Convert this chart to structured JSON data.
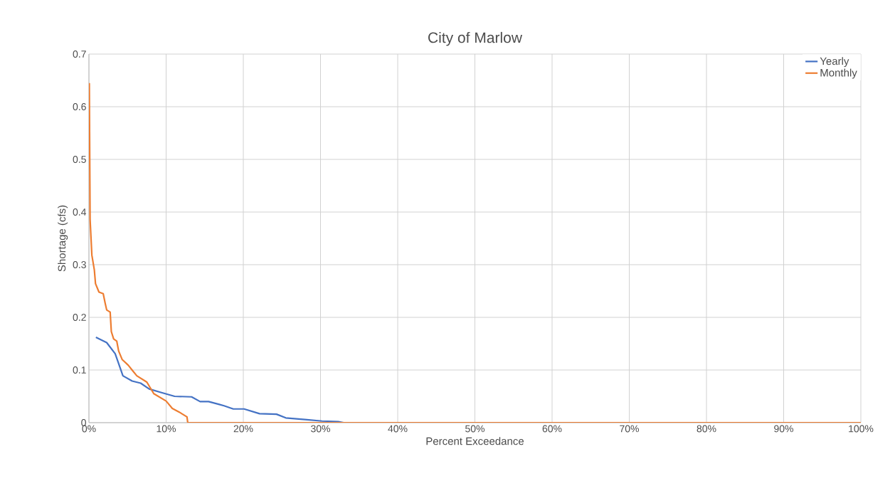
{
  "chart_data": {
    "type": "line",
    "title": "City of Marlow",
    "xlabel": "Percent Exceedance",
    "ylabel": "Shortage (cfs)",
    "xlim": [
      0,
      100
    ],
    "ylim": [
      0,
      0.7
    ],
    "xticks": [
      {
        "value": 0,
        "label": "0%"
      },
      {
        "value": 10,
        "label": "10%"
      },
      {
        "value": 20,
        "label": "20%"
      },
      {
        "value": 30,
        "label": "30%"
      },
      {
        "value": 40,
        "label": "40%"
      },
      {
        "value": 50,
        "label": "50%"
      },
      {
        "value": 60,
        "label": "60%"
      },
      {
        "value": 70,
        "label": "70%"
      },
      {
        "value": 80,
        "label": "80%"
      },
      {
        "value": 90,
        "label": "90%"
      },
      {
        "value": 100,
        "label": "100%"
      }
    ],
    "yticks": [
      0,
      0.1,
      0.2,
      0.3,
      0.4,
      0.5,
      0.6,
      0.7
    ],
    "grid": true,
    "legend": "top right",
    "marker": "none",
    "line_style": "solid",
    "series": [
      {
        "name": "Yearly",
        "color": "#4472c4",
        "x": [
          0.9,
          2.3,
          3.4,
          4.4,
          5.6,
          6.7,
          7.8,
          9.4,
          11.1,
          13.3,
          14.4,
          15.5,
          16.8,
          17.5,
          18.7,
          20.1,
          22.1,
          24.3,
          25.5,
          28,
          30.2,
          32.3,
          33
        ],
        "values": [
          0.162,
          0.152,
          0.131,
          0.089,
          0.079,
          0.075,
          0.064,
          0.057,
          0.05,
          0.049,
          0.04,
          0.04,
          0.035,
          0.032,
          0.026,
          0.026,
          0.017,
          0.016,
          0.009,
          0.006,
          0.003,
          0.002,
          0
        ]
      },
      {
        "name": "Monthly",
        "color": "#ed7d31",
        "x": [
          0.05,
          0.15,
          0.38,
          0.7,
          0.85,
          1.3,
          1.85,
          2.1,
          2.3,
          2.75,
          2.9,
          3.2,
          3.6,
          3.85,
          4.3,
          5.1,
          5.7,
          6.2,
          7.5,
          8.4,
          10,
          10.8,
          11.7,
          12.7,
          12.8,
          100
        ],
        "values": [
          0.645,
          0.386,
          0.318,
          0.29,
          0.264,
          0.248,
          0.245,
          0.227,
          0.214,
          0.21,
          0.173,
          0.159,
          0.155,
          0.136,
          0.12,
          0.109,
          0.098,
          0.089,
          0.077,
          0.055,
          0.041,
          0.027,
          0.02,
          0.011,
          0,
          0
        ]
      }
    ]
  }
}
